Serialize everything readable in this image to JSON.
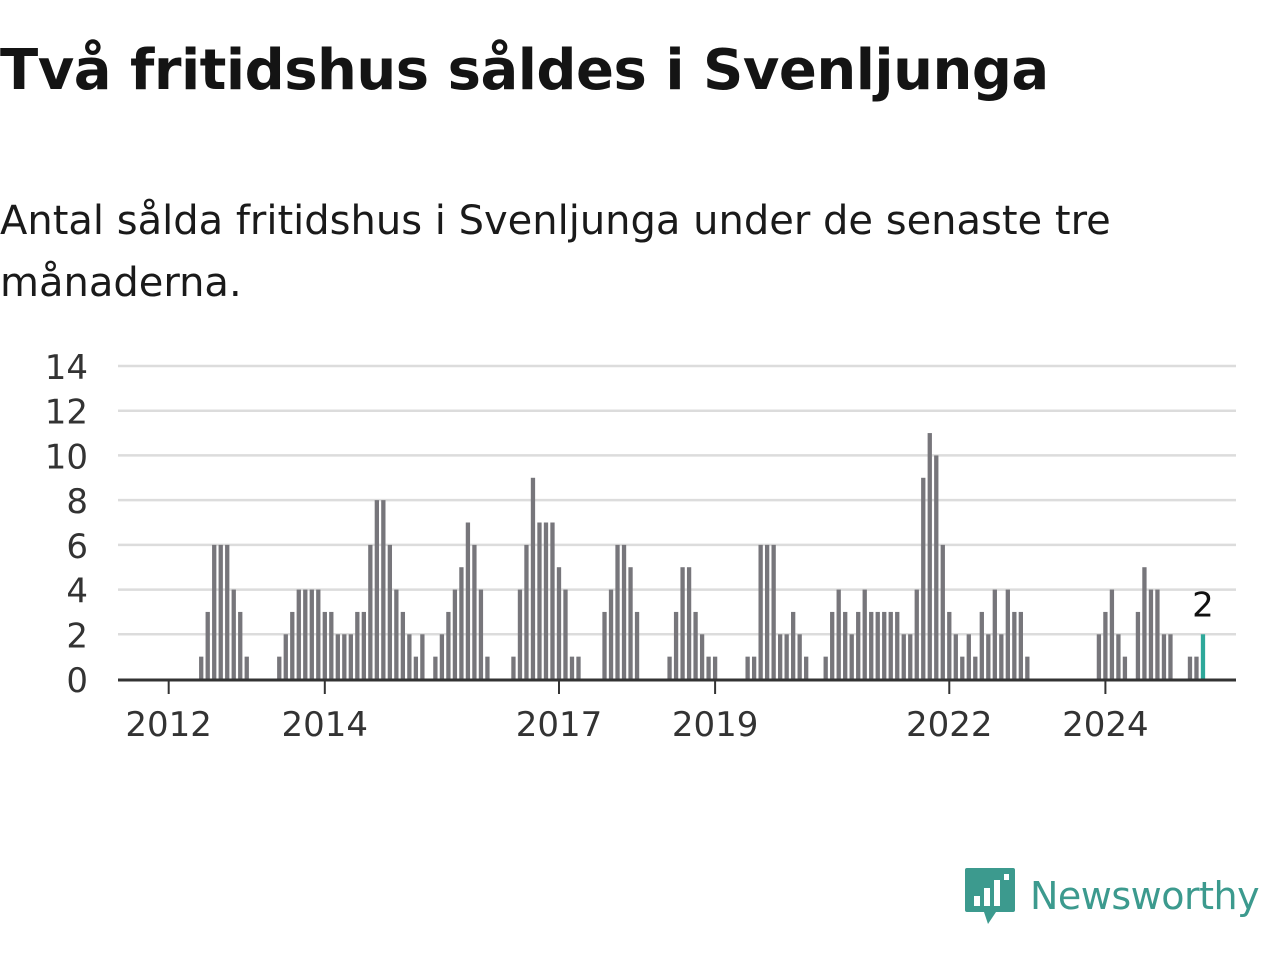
{
  "title": "Två fritidshus såldes i Svenljunga",
  "subtitle": "Antal sålda fritidshus i Svenljunga under de senaste tre månaderna.",
  "brand": {
    "name": "Newsworthy",
    "icon": "newsworthy-logo-icon",
    "color": "#3c9a8e"
  },
  "colors": {
    "bar": "#77767b",
    "highlight": "#2ea89a",
    "grid": "#dcdcdc",
    "axis": "#333333"
  },
  "chart_data": {
    "type": "bar",
    "x_start": "2011-06",
    "frequency": "monthly",
    "y_ticks": [
      0,
      2,
      4,
      6,
      8,
      10,
      12,
      14
    ],
    "ylim": [
      0,
      14
    ],
    "x_tick_labels": [
      {
        "label": "2012",
        "month": "2012-01"
      },
      {
        "label": "2014",
        "month": "2014-01"
      },
      {
        "label": "2017",
        "month": "2017-01"
      },
      {
        "label": "2019",
        "month": "2019-01"
      },
      {
        "label": "2022",
        "month": "2022-01"
      },
      {
        "label": "2024",
        "month": "2024-01"
      }
    ],
    "values": [
      0,
      0,
      0,
      0,
      0,
      0,
      0,
      0,
      0,
      0,
      0,
      0,
      1,
      3,
      6,
      6,
      6,
      4,
      3,
      1,
      0,
      0,
      0,
      0,
      1,
      2,
      3,
      4,
      4,
      4,
      4,
      3,
      3,
      2,
      2,
      2,
      3,
      3,
      6,
      8,
      8,
      6,
      4,
      3,
      2,
      1,
      2,
      0,
      1,
      2,
      3,
      4,
      5,
      7,
      6,
      4,
      1,
      0,
      0,
      0,
      1,
      4,
      6,
      9,
      7,
      7,
      7,
      5,
      4,
      1,
      1,
      0,
      0,
      0,
      3,
      4,
      6,
      6,
      5,
      3,
      0,
      0,
      0,
      0,
      1,
      3,
      5,
      5,
      3,
      2,
      1,
      1,
      0,
      0,
      0,
      0,
      1,
      1,
      6,
      6,
      6,
      2,
      2,
      3,
      2,
      1,
      0,
      0,
      1,
      3,
      4,
      3,
      2,
      3,
      4,
      3,
      3,
      3,
      3,
      3,
      2,
      2,
      4,
      9,
      11,
      10,
      6,
      3,
      2,
      1,
      2,
      1,
      3,
      2,
      4,
      2,
      4,
      3,
      3,
      1,
      0,
      0,
      0,
      0,
      0,
      0,
      0,
      0,
      0,
      0,
      2,
      3,
      4,
      2,
      1,
      0,
      3,
      5,
      4,
      4,
      2,
      2,
      0,
      0,
      1,
      1,
      2
    ],
    "highlight_last": true,
    "highlight_label": "2"
  }
}
